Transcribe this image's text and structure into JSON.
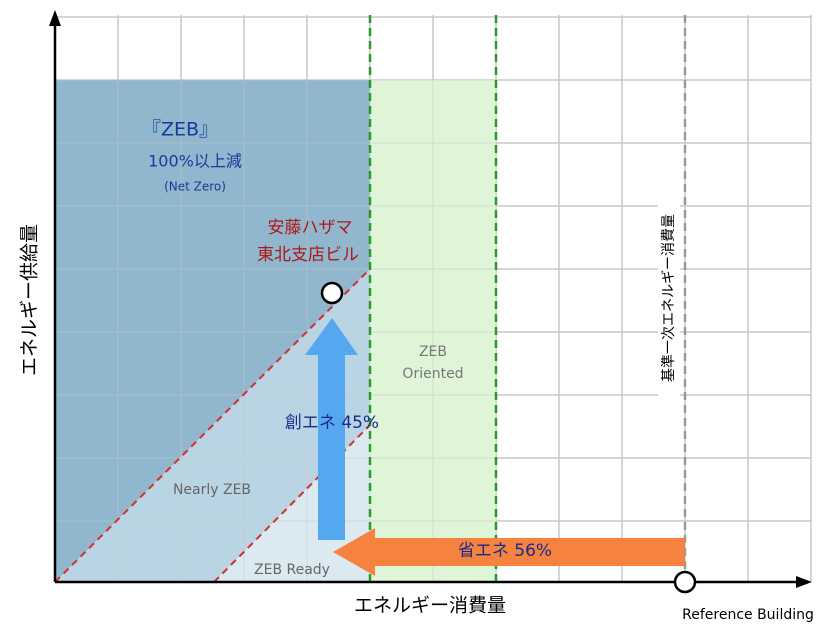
{
  "axes": {
    "y_label": "エネルギー供給量",
    "x_label": "エネルギー消費量",
    "reference_point": "Reference Building",
    "reference_line_label": "基準一次エネルギー消費量"
  },
  "regions": {
    "zeb": {
      "title": "『ZEB』",
      "subtitle": "100%以上減",
      "note": "(Net Zero)"
    },
    "zeb_oriented": {
      "line1": "ZEB",
      "line2": "Oriented"
    },
    "nearly_zeb": "Nearly ZEB",
    "zeb_ready": "ZEB Ready"
  },
  "building": {
    "line1": "安藤ハザマ",
    "line2": "東北支店ビル"
  },
  "arrows": {
    "creation": "創エネ 45%",
    "saving": "省エネ 56%"
  }
}
